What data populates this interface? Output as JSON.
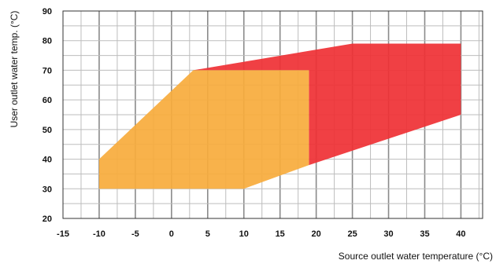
{
  "chart_data": {
    "type": "area",
    "title": "",
    "xlabel": "Source outlet water temperature (°C)",
    "ylabel": "User outlet water temp. (°C)",
    "xlim": [
      -15,
      43
    ],
    "ylim": [
      20,
      90
    ],
    "x_ticks": [
      "-15",
      "-10",
      "-5",
      "0",
      "5",
      "10",
      "15",
      "20",
      "25",
      "30",
      "35",
      "40"
    ],
    "y_ticks": [
      "20",
      "30",
      "40",
      "50",
      "60",
      "70",
      "80",
      "90"
    ],
    "grid": true,
    "grid_minor_x_step": 2.5,
    "grid_minor_y_step": 5,
    "series": [
      {
        "color": "#ef3034",
        "points": [
          [
            3,
            70
          ],
          [
            25,
            79
          ],
          [
            40,
            79
          ],
          [
            40,
            55
          ],
          [
            19,
            38
          ],
          [
            19,
            70
          ]
        ]
      },
      {
        "color": "#f7ab3c",
        "points": [
          [
            -10,
            30
          ],
          [
            -10,
            40
          ],
          [
            3,
            70
          ],
          [
            19,
            70
          ],
          [
            19,
            38
          ],
          [
            10,
            30
          ]
        ]
      }
    ]
  }
}
